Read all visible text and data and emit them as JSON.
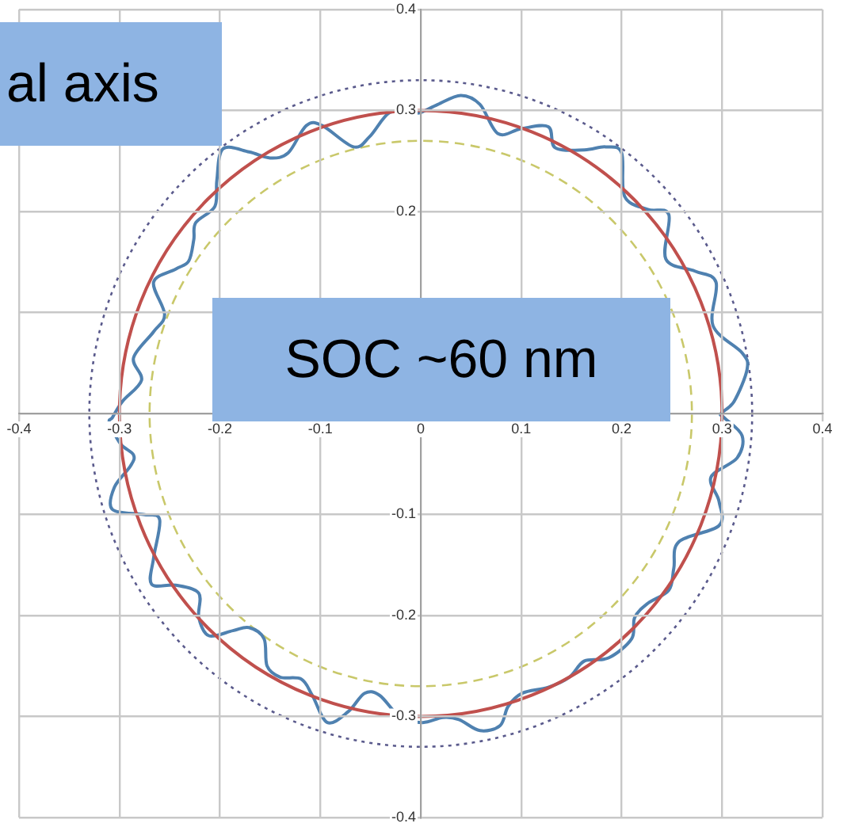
{
  "chart_data": {
    "type": "line",
    "annotations": [
      "al axis",
      "SOC ~60 nm"
    ],
    "xlim": [
      -0.4,
      0.4
    ],
    "ylim": [
      -0.4,
      0.4
    ],
    "xticks": [
      -0.4,
      -0.3,
      -0.2,
      -0.1,
      0,
      0.1,
      0.2,
      0.3,
      0.4
    ],
    "yticks": [
      -0.4,
      -0.3,
      -0.2,
      -0.1,
      {
        "value": 0,
        "label": null
      },
      {
        "value": 0.1,
        "label": null
      },
      0.2,
      0.3,
      0.4
    ],
    "grid": true,
    "legend": false
  }
}
